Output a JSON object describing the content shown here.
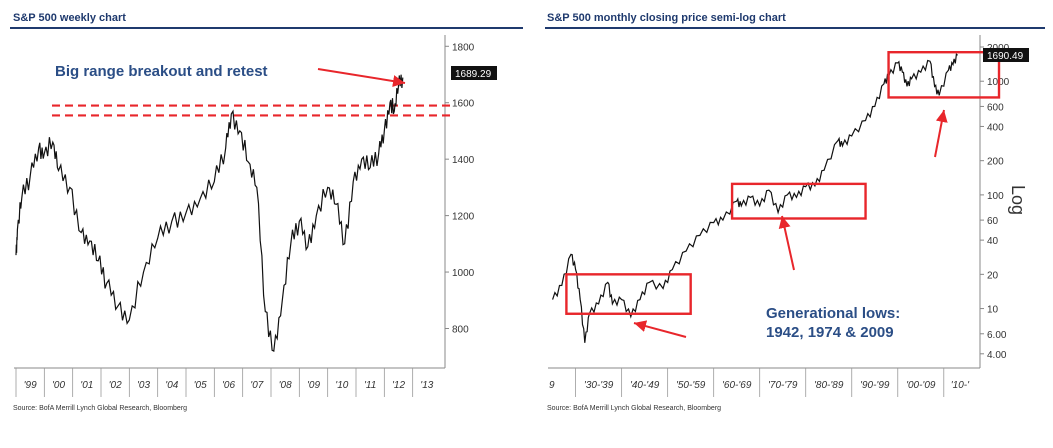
{
  "colors": {
    "title": "#1f3a6e",
    "header_rule": "#1f3a6e",
    "annotation": "#2b4e86",
    "highlight": "#e8262b",
    "price_line": "#111111"
  },
  "left": {
    "title": "S&P 500 weekly chart",
    "source": "Source: BofA Merrill Lynch Global Research, Bloomberg",
    "annotation": "Big range breakout and retest",
    "last_price": "1689.29",
    "chart_data": {
      "type": "line",
      "title": "S&P 500 weekly chart",
      "xlabel": "",
      "ylabel": "",
      "categories": [
        "'99",
        "'00",
        "'01",
        "'02",
        "'03",
        "'04",
        "'05",
        "'06",
        "'07",
        "'08",
        "'09",
        "'10",
        "'11",
        "'12",
        "'13"
      ],
      "ylim": [
        660,
        1840
      ],
      "yticks": [
        800,
        1000,
        1200,
        1400,
        1600,
        1800
      ],
      "tick_labels": [
        "800",
        "1000",
        "1200",
        "1400",
        "1600",
        "1800"
      ],
      "breakout_band": [
        1555,
        1590
      ],
      "series": [
        {
          "name": "S&P 500",
          "x": [
            0,
            0.05,
            0.2,
            0.5,
            0.8,
            1.0,
            1.3,
            1.5,
            1.9,
            2.3,
            2.6,
            2.9,
            3.2,
            3.6,
            4.0,
            4.5,
            5.0,
            5.5,
            6.0,
            6.5,
            7.0,
            7.4,
            7.6,
            7.9,
            8.2,
            8.5,
            8.8,
            9.1,
            9.4,
            9.7,
            10.0,
            10.3,
            10.6,
            11.0,
            11.3,
            11.6,
            11.9,
            12.2,
            12.5,
            12.8,
            13.0,
            13.2,
            13.35,
            13.5,
            13.65
          ],
          "values": [
            1060,
            1150,
            1260,
            1340,
            1440,
            1420,
            1460,
            1360,
            1300,
            1140,
            1110,
            1040,
            960,
            880,
            830,
            1000,
            1120,
            1180,
            1210,
            1260,
            1320,
            1440,
            1560,
            1500,
            1390,
            1300,
            860,
            720,
            900,
            1100,
            1180,
            1090,
            1200,
            1300,
            1240,
            1100,
            1320,
            1400,
            1370,
            1420,
            1500,
            1600,
            1570,
            1660,
            1689
          ]
        }
      ]
    }
  },
  "right": {
    "title": "S&P 500 monthly closing price semi-log chart",
    "source": "Source: BofA Merrill Lynch Global Research, Bloomberg",
    "annotation_line1": "Generational lows:",
    "annotation_line2": "1942, 1974 & 2009",
    "axis_label": "Log",
    "last_price": "1690.49",
    "chart_data": {
      "type": "line",
      "title": "S&P 500 monthly closing price semi-log chart",
      "xlabel": "",
      "ylabel": "Log",
      "categories": [
        "9",
        "'30-'39",
        "'40-'49",
        "'50-'59",
        "'60-'69",
        "'70-'79",
        "'80-'89",
        "'90-'99",
        "'00-'09",
        "'10-'"
      ],
      "yscale": "log",
      "ylim": [
        3,
        2400
      ],
      "yticks": [
        4,
        6,
        10,
        20,
        40,
        60,
        100,
        200,
        400,
        600,
        1000,
        2000
      ],
      "tick_labels": [
        "4.00",
        "6.00",
        "10",
        "20",
        "40",
        "60",
        "100",
        "200",
        "400",
        "600",
        "1000",
        "2000"
      ],
      "highlight_boxes": [
        {
          "x_from": 1928,
          "x_to": 1955,
          "y_from": 9,
          "y_to": 20
        },
        {
          "x_from": 1964,
          "x_to": 1993,
          "y_from": 62,
          "y_to": 125
        },
        {
          "x_from": 1998,
          "x_to": 2022,
          "y_from": 720,
          "y_to": 1800
        }
      ],
      "series": [
        {
          "name": "S&P 500 monthly close",
          "x": [
            1925,
            1927,
            1929,
            1930,
            1931,
            1932,
            1933,
            1935,
            1937,
            1938,
            1940,
            1942,
            1944,
            1946,
            1949,
            1951,
            1954,
            1957,
            1960,
            1962,
            1965,
            1966,
            1968,
            1970,
            1972,
            1974,
            1976,
            1978,
            1980,
            1982,
            1984,
            1987,
            1988,
            1990,
            1993,
            1995,
            1997,
            1998,
            2000,
            2001,
            2002,
            2003,
            2005,
            2007,
            2008,
            2009,
            2011,
            2012,
            2013
          ],
          "values": [
            12,
            16,
            30,
            22,
            12,
            5,
            9,
            11,
            17,
            11,
            12,
            8.5,
            12,
            17,
            15,
            22,
            32,
            44,
            57,
            60,
            88,
            80,
            95,
            80,
            110,
            70,
            100,
            95,
            118,
            120,
            165,
            300,
            270,
            330,
            450,
            600,
            950,
            1100,
            1450,
            1200,
            900,
            1050,
            1200,
            1500,
            900,
            750,
            1250,
            1400,
            1690
          ]
        }
      ]
    }
  }
}
